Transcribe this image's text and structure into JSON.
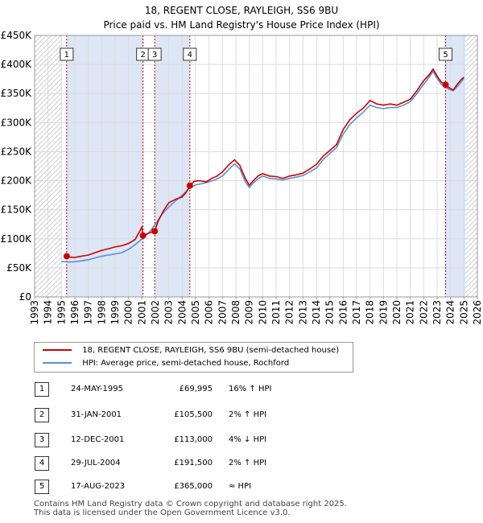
{
  "header": {
    "title_line1": "18, REGENT CLOSE, RAYLEIGH, SS6 9BU",
    "title_line2": "Price paid vs. HM Land Registry's House Price Index (HPI)"
  },
  "colors": {
    "property": "#cc0000",
    "hpi": "#5b8fcf",
    "highlight": "#dce6f5",
    "hatch": "#cccccc"
  },
  "legend": {
    "property_label": "18, REGENT CLOSE, RAYLEIGH, SS6 9BU (semi-detached house)",
    "hpi_label": "HPI: Average price, semi-detached house, Rochford"
  },
  "sales": [
    {
      "num": "1",
      "date": "24-MAY-1995",
      "price": "£69,995",
      "hpi": "16% ↑ HPI"
    },
    {
      "num": "2",
      "date": "31-JAN-2001",
      "price": "£105,500",
      "hpi": "2% ↑ HPI"
    },
    {
      "num": "3",
      "date": "12-DEC-2001",
      "price": "£113,000",
      "hpi": "4% ↓ HPI"
    },
    {
      "num": "4",
      "date": "29-JUL-2004",
      "price": "£191,500",
      "hpi": "2% ↑ HPI"
    },
    {
      "num": "5",
      "date": "17-AUG-2023",
      "price": "£365,000",
      "hpi": "≈ HPI"
    }
  ],
  "footer": {
    "line1": "Contains HM Land Registry data © Crown copyright and database right 2025.",
    "line2": "This data is licensed under the Open Government Licence v3.0."
  },
  "chart_data": {
    "type": "line",
    "title": "18, REGENT CLOSE, RAYLEIGH, SS6 9BU",
    "subtitle": "Price paid vs. HM Land Registry's House Price Index (HPI)",
    "xlabel": "",
    "ylabel": "",
    "xlim": [
      1993,
      2026
    ],
    "ylim": [
      0,
      450000
    ],
    "x_ticks": [
      1993,
      1994,
      1995,
      1996,
      1997,
      1998,
      1999,
      2000,
      2001,
      2002,
      2003,
      2004,
      2005,
      2006,
      2007,
      2008,
      2009,
      2010,
      2011,
      2012,
      2013,
      2014,
      2015,
      2016,
      2017,
      2018,
      2019,
      2020,
      2021,
      2022,
      2023,
      2024,
      2025,
      2026
    ],
    "y_ticks": [
      0,
      50000,
      100000,
      150000,
      200000,
      250000,
      300000,
      350000,
      400000,
      450000
    ],
    "y_tick_labels": [
      "£0",
      "£50K",
      "£100K",
      "£150K",
      "£200K",
      "£250K",
      "£300K",
      "£350K",
      "£400K",
      "£450K"
    ],
    "grid": true,
    "hatched_ranges": [
      [
        1993,
        1995.0
      ],
      [
        2025.1,
        2026
      ]
    ],
    "sale_markers": [
      {
        "label": "1",
        "x": 1995.39,
        "y": 69995
      },
      {
        "label": "2",
        "x": 2001.08,
        "y": 105500
      },
      {
        "label": "3",
        "x": 2001.95,
        "y": 113000
      },
      {
        "label": "4",
        "x": 2004.57,
        "y": 191500
      },
      {
        "label": "5",
        "x": 2023.63,
        "y": 365000
      }
    ],
    "series": [
      {
        "name": "18, REGENT CLOSE, RAYLEIGH, SS6 9BU (semi-detached house)",
        "x": [
          1995.39,
          1995.6,
          1996.0,
          1996.5,
          1997.0,
          1997.5,
          1998.0,
          1998.5,
          1999.0,
          1999.5,
          2000.0,
          2000.5,
          2001.0,
          2001.08,
          2001.5,
          2001.95,
          2002.2,
          2002.6,
          2003.0,
          2003.5,
          2004.0,
          2004.3,
          2004.57,
          2004.9,
          2005.3,
          2005.8,
          2006.2,
          2006.6,
          2007.0,
          2007.5,
          2007.9,
          2008.3,
          2008.7,
          2009.0,
          2009.3,
          2009.7,
          2010.0,
          2010.5,
          2011.0,
          2011.5,
          2012.0,
          2012.5,
          2013.0,
          2013.5,
          2014.0,
          2014.5,
          2015.0,
          2015.5,
          2016.0,
          2016.5,
          2017.0,
          2017.5,
          2018.0,
          2018.5,
          2019.0,
          2019.5,
          2020.0,
          2020.5,
          2021.0,
          2021.5,
          2022.0,
          2022.4,
          2022.7,
          2023.0,
          2023.3,
          2023.63,
          2023.9,
          2024.2,
          2024.5,
          2024.8,
          2025.0
        ],
        "values": [
          69995,
          68500,
          68000,
          70000,
          72000,
          76000,
          80000,
          83000,
          86000,
          88000,
          92000,
          99000,
          120000,
          105500,
          110000,
          113000,
          130000,
          148000,
          162000,
          168000,
          172000,
          180000,
          191500,
          199000,
          200000,
          198000,
          204000,
          208000,
          215000,
          228000,
          236000,
          226000,
          204000,
          192000,
          200000,
          209000,
          212000,
          208000,
          207000,
          204000,
          208000,
          210000,
          213000,
          220000,
          228000,
          242000,
          252000,
          262000,
          288000,
          305000,
          316000,
          325000,
          338000,
          332000,
          330000,
          332000,
          330000,
          335000,
          340000,
          355000,
          372000,
          382000,
          392000,
          380000,
          370000,
          365000,
          360000,
          356000,
          366000,
          374000,
          378000
        ]
      },
      {
        "name": "HPI: Average price, semi-detached house, Rochford",
        "x": [
          1995.0,
          1995.5,
          1996.0,
          1996.5,
          1997.0,
          1997.5,
          1998.0,
          1998.5,
          1999.0,
          1999.5,
          2000.0,
          2000.5,
          2001.0,
          2001.5,
          2002.0,
          2002.5,
          2003.0,
          2003.5,
          2004.0,
          2004.5,
          2005.0,
          2005.5,
          2006.0,
          2006.5,
          2007.0,
          2007.5,
          2007.9,
          2008.3,
          2008.7,
          2009.0,
          2009.3,
          2009.7,
          2010.0,
          2010.5,
          2011.0,
          2011.5,
          2012.0,
          2012.5,
          2013.0,
          2013.5,
          2014.0,
          2014.5,
          2015.0,
          2015.5,
          2016.0,
          2016.5,
          2017.0,
          2017.5,
          2018.0,
          2018.5,
          2019.0,
          2019.5,
          2020.0,
          2020.5,
          2021.0,
          2021.5,
          2022.0,
          2022.4,
          2022.7,
          2023.0,
          2023.3,
          2023.6,
          2023.9,
          2024.2,
          2024.5,
          2024.8,
          2025.0
        ],
        "values": [
          61000,
          60000,
          60500,
          62000,
          64000,
          67000,
          70000,
          72000,
          74000,
          76000,
          82000,
          90000,
          100000,
          110000,
          125000,
          142000,
          155000,
          165000,
          175000,
          186000,
          193000,
          195000,
          198000,
          202000,
          208000,
          220000,
          229000,
          220000,
          198000,
          188000,
          196000,
          204000,
          208000,
          204000,
          203000,
          201000,
          204000,
          206000,
          209000,
          215000,
          222000,
          236000,
          247000,
          257000,
          280000,
          297000,
          308000,
          318000,
          330000,
          326000,
          324000,
          326000,
          326000,
          330000,
          336000,
          350000,
          366000,
          378000,
          388000,
          376000,
          366000,
          362000,
          357000,
          355000,
          362000,
          370000,
          376000
        ]
      }
    ]
  }
}
